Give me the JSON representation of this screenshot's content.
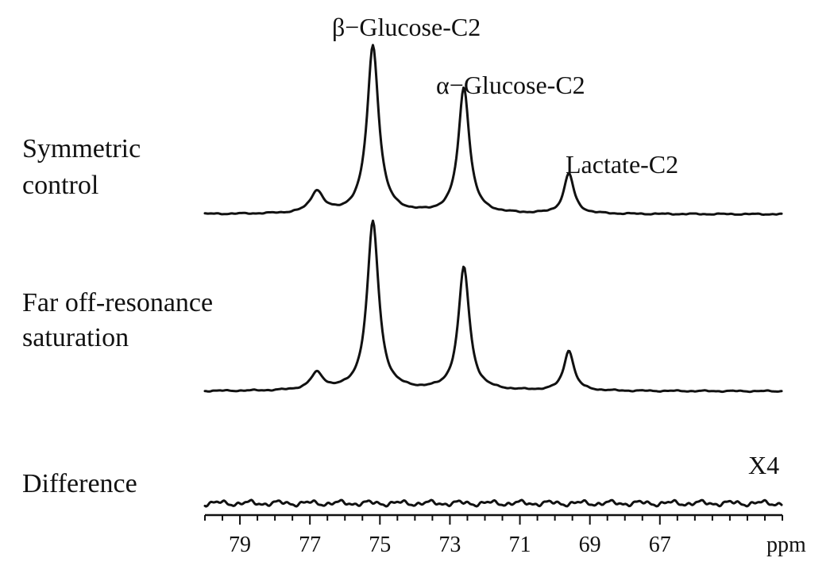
{
  "chart_data": {
    "type": "line",
    "x_axis": {
      "unit_label": "ppm",
      "reversed": true,
      "xlim": [
        80.0,
        63.5
      ],
      "tick_labels": [
        "79",
        "77",
        "75",
        "73",
        "71",
        "69",
        "67"
      ],
      "tick_values": [
        79,
        77,
        75,
        73,
        71,
        69,
        67
      ],
      "minor_step": 0.5
    },
    "series": [
      {
        "name_lines": [
          "Symmetric",
          "control"
        ],
        "peaks": [
          {
            "x": 76.8,
            "height": 0.13,
            "width": 0.22
          },
          {
            "x": 75.2,
            "height": 1.0,
            "width": 0.2
          },
          {
            "x": 72.6,
            "height": 0.75,
            "width": 0.19
          },
          {
            "x": 69.6,
            "height": 0.24,
            "width": 0.17
          }
        ]
      },
      {
        "name_lines": [
          "Far off-resonance",
          "saturation"
        ],
        "peaks": [
          {
            "x": 76.8,
            "height": 0.1,
            "width": 0.22
          },
          {
            "x": 75.2,
            "height": 1.0,
            "width": 0.2
          },
          {
            "x": 72.6,
            "height": 0.73,
            "width": 0.19
          },
          {
            "x": 69.6,
            "height": 0.24,
            "width": 0.17
          }
        ]
      },
      {
        "name_lines": [
          "Difference"
        ],
        "scale_note": "X4",
        "peaks": []
      }
    ],
    "annotations": [
      {
        "text": "β−Glucose-C2",
        "x": 75.2
      },
      {
        "text": "α−Glucose-C2",
        "x": 72.6
      },
      {
        "text": "Lactate-C2",
        "x": 69.6
      }
    ]
  }
}
